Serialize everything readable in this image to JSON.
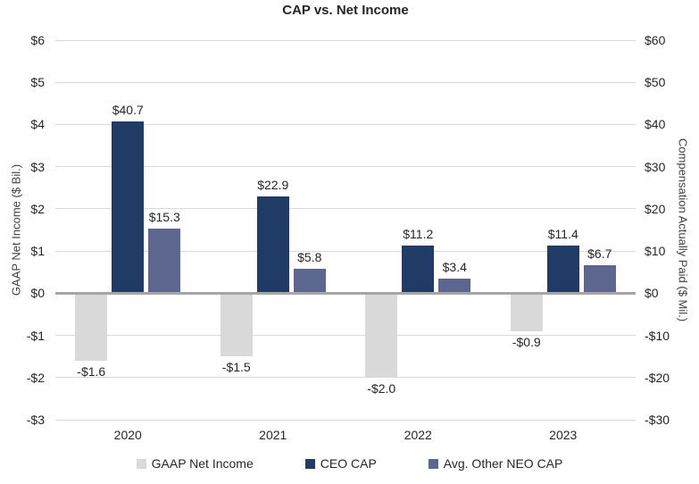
{
  "title": "CAP vs. Net Income",
  "left_axis": {
    "title": "GAAP Net Income ($ Bil.)",
    "ticks": [
      "$6",
      "$5",
      "$4",
      "$3",
      "$2",
      "$1",
      "$0",
      "-$1",
      "-$2",
      "-$3"
    ],
    "max": 6,
    "min": -3,
    "step": 1
  },
  "right_axis": {
    "title": "Compensation Actually Paid ($ Mil.)",
    "ticks": [
      "$60",
      "$50",
      "$40",
      "$30",
      "$20",
      "$10",
      "$0",
      "-$10",
      "-$20",
      "-$30"
    ],
    "max": 60,
    "min": -30,
    "step": 10
  },
  "chart_data": {
    "type": "bar",
    "title": "CAP vs. Net Income",
    "categories": [
      "2020",
      "2021",
      "2022",
      "2023"
    ],
    "series": [
      {
        "name": "GAAP Net Income",
        "axis": "left",
        "unit": "$ Bil.",
        "color": "#d9d9d9",
        "values": [
          -1.6,
          -1.5,
          -2.0,
          -0.9
        ],
        "labels": [
          "-$1.6",
          "-$1.5",
          "-$2.0",
          "-$0.9"
        ]
      },
      {
        "name": "CEO CAP",
        "axis": "right",
        "unit": "$ Mil.",
        "color": "#1f3b66",
        "values": [
          40.7,
          22.9,
          11.2,
          11.4
        ],
        "labels": [
          "$40.7",
          "$22.9",
          "$11.2",
          "$11.4"
        ]
      },
      {
        "name": "Avg. Other NEO CAP",
        "axis": "right",
        "unit": "$ Mil.",
        "color": "#5d668f",
        "values": [
          15.3,
          5.8,
          3.4,
          6.7
        ],
        "labels": [
          "$15.3",
          "$5.8",
          "$3.4",
          "$6.7"
        ]
      }
    ],
    "left_ylim": [
      -3,
      6
    ],
    "right_ylim": [
      -30,
      60
    ],
    "grid": true,
    "legend_position": "bottom",
    "colors": {
      "gridline": "#d9d9d9",
      "zero_line": "#a6a6a6",
      "text": "#262626"
    }
  }
}
